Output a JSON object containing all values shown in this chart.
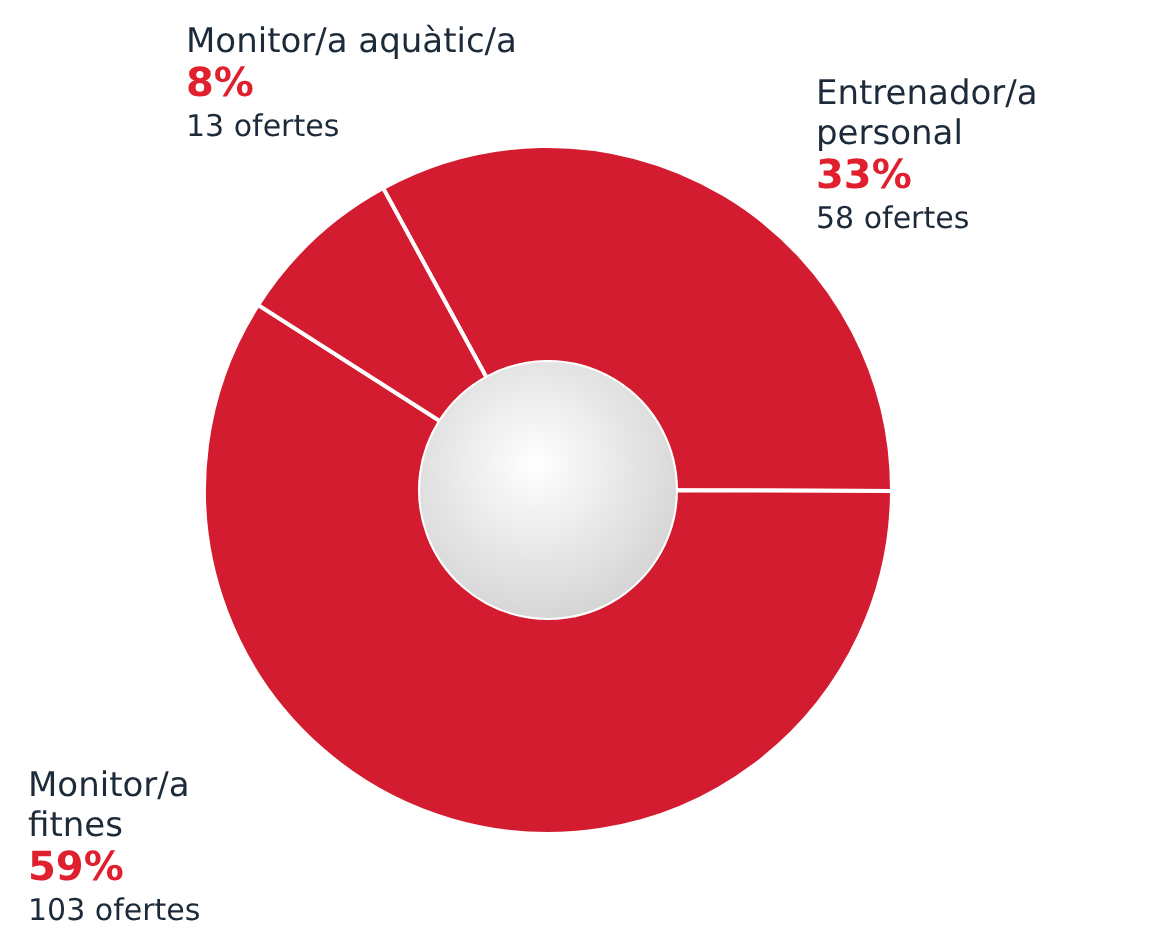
{
  "chart_data": {
    "type": "donut",
    "categories": [
      "Entrenador/a personal",
      "Monitor/a fitnes",
      "Monitor/a aquàtic/a"
    ],
    "values": [
      33,
      59,
      8
    ],
    "colors": [
      "#d41c30",
      "#d41c30",
      "#d41c30"
    ],
    "value_labels": [
      "33%",
      "59%",
      "8%"
    ],
    "annotations": [
      "58 ofertes",
      "103 ofertes",
      "13 ofertes"
    ]
  }
}
